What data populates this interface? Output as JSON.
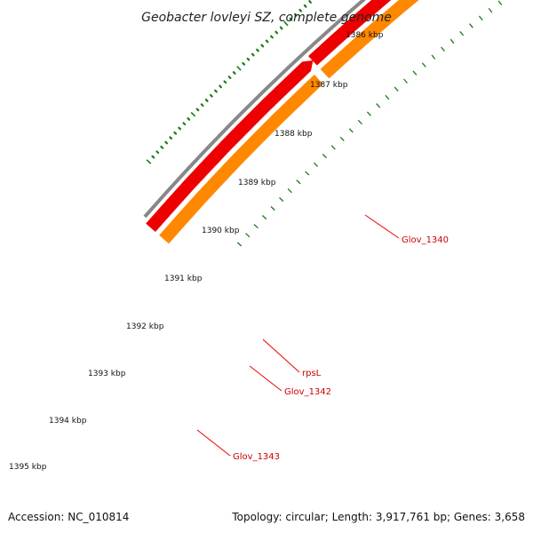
{
  "title": "Geobacter lovleyi SZ, complete genome",
  "accession_text": "Accession: NC_010814",
  "topology_text": "Topology: circular; Length: 3,917,761 bp; Genes: 3,658",
  "tick_labels": [
    "1386 kbp",
    "1387 kbp",
    "1388 kbp",
    "1389 kbp",
    "1390 kbp",
    "1391 kbp",
    "1392 kbp",
    "1393 kbp",
    "1394 kbp",
    "1395 kbp"
  ],
  "gene_labels": {
    "glov_1340": "Glov_1340",
    "rpsl": "rpsL",
    "glov_1342": "Glov_1342",
    "glov_1343": "Glov_1343"
  },
  "colors": {
    "backbone": "#888888",
    "cds": "#ee0000",
    "cds_light": "#ee8888",
    "cds_orange": "#ff8800",
    "ticks": "#1a7a1a",
    "label_lines": "#ee0000"
  }
}
